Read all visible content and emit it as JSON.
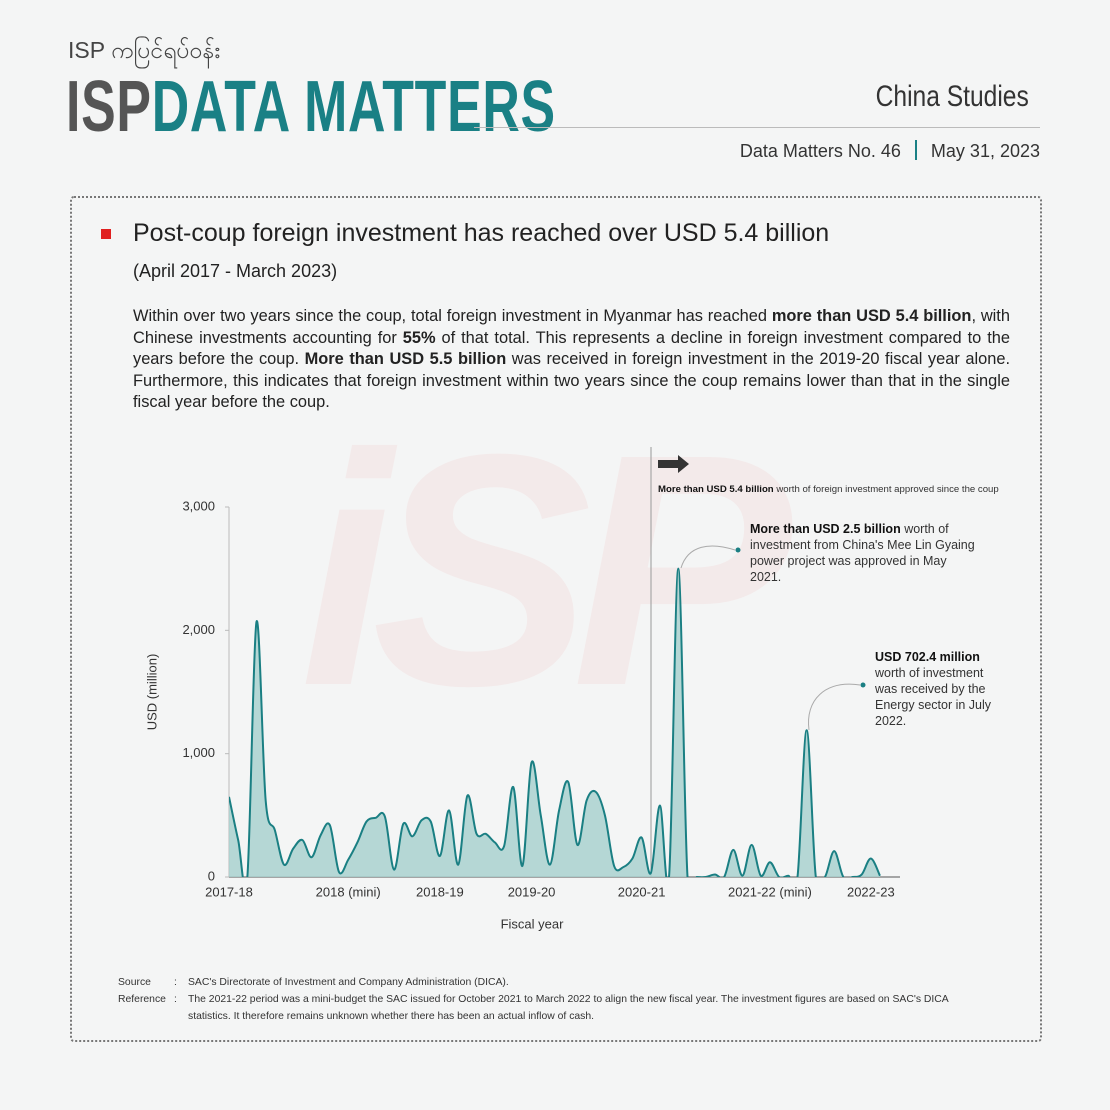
{
  "header": {
    "kicker": "ISP ကပြင်ရပ်ဝန်း",
    "brand_a": "ISP",
    "brand_b": "DATA MATTERS",
    "section": "China Studies",
    "issue": "Data Matters No. 46",
    "date": "May 31, 2023"
  },
  "watermark": "iSP",
  "headline": "Post-coup foreign investment has reached over USD 5.4 billion",
  "period": "(April 2017 - March 2023)",
  "body": [
    "Within over two years since the coup, total foreign investment in Myanmar has reached ",
    "more than USD 5.4 billion",
    ", with Chinese investments accounting for ",
    "55%",
    " of that total. This represents a decline in foreign investment compared to the years before the coup. ",
    "More than USD 5.5 billion",
    " was received in foreign investment in the 2019-20 fiscal year alone. Furthermore, this indicates that foreign investment within two years since the coup remains lower than that in the single fiscal year before the coup."
  ],
  "annotations": {
    "coup": [
      "More than USD 5.4 billion",
      " worth of foreign investment approved since the coup"
    ],
    "meelin": [
      "More than USD 2.5 billion",
      " worth of investment from China's Mee Lin Gyaing power project was approved in May 2021."
    ],
    "energy": [
      "USD 702.4 million",
      " worth of investment was received by the Energy sector in July 2022."
    ]
  },
  "chart_data": {
    "type": "area",
    "y_label": "USD (million)",
    "x_label": "Fiscal year",
    "color": "#1a7f83",
    "fill": "#a9d1cf",
    "categories": [
      "2017-18",
      null,
      null,
      null,
      null,
      null,
      null,
      null,
      null,
      null,
      null,
      null,
      null,
      "2018 (mini)",
      null,
      null,
      null,
      null,
      null,
      null,
      null,
      null,
      null,
      "2018-19",
      null,
      null,
      null,
      null,
      null,
      null,
      null,
      null,
      null,
      "2019-20",
      null,
      null,
      null,
      null,
      null,
      null,
      null,
      null,
      null,
      null,
      null,
      "2020-21",
      null,
      null,
      null,
      null,
      null,
      null,
      null,
      null,
      null,
      null,
      null,
      null,
      null,
      "2021-22 (mini)",
      null,
      null,
      null,
      null,
      null,
      null,
      null,
      null,
      null,
      null,
      "2022-23",
      null
    ],
    "values": [
      650,
      300,
      0,
      2070,
      620,
      380,
      100,
      230,
      300,
      160,
      340,
      420,
      40,
      140,
      280,
      450,
      480,
      490,
      60,
      430,
      330,
      460,
      450,
      170,
      540,
      100,
      660,
      350,
      350,
      280,
      250,
      730,
      90,
      930,
      500,
      100,
      540,
      770,
      260,
      620,
      690,
      500,
      90,
      80,
      150,
      320,
      30,
      580,
      10,
      2500,
      10,
      0,
      0,
      20,
      0,
      220,
      10,
      260,
      10,
      120,
      0,
      10,
      0,
      1190,
      0,
      0,
      210,
      0,
      0,
      20,
      150,
      10
    ],
    "ylim": [
      0,
      3000
    ],
    "yticks": [
      0,
      {
        "value": 1000,
        "label": "1,000"
      },
      {
        "value": 2000,
        "label": "2,000"
      },
      {
        "value": 3000,
        "label": "3,000"
      }
    ],
    "grid": false
  },
  "footnotes": [
    {
      "label": "Source",
      "sep": ":",
      "text": "SAC's Directorate of Investment and Company Administration (DICA)."
    },
    {
      "label": "Reference",
      "sep": ":",
      "text": "The 2021-22 period was a mini-budget the SAC issued for October 2021 to March 2022 to align the new fiscal year. The investment figures are based on SAC's DICA statistics. It therefore remains unknown whether there has been an actual inflow of cash."
    }
  ]
}
